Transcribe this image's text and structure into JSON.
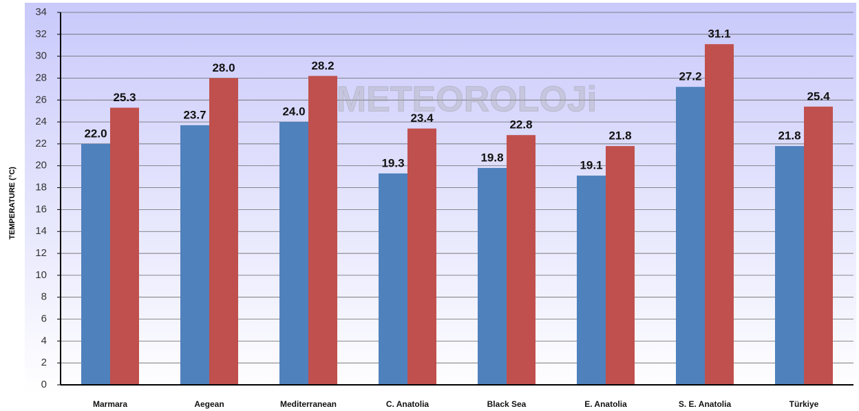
{
  "chart_data": {
    "type": "bar",
    "ylabel": "TEMPERATURE (°C)",
    "watermark": "METEOROLOJi",
    "categories": [
      "Marmara",
      "Aegean",
      "Mediterranean",
      "C. Anatolia",
      "Black Sea",
      "E. Anatolia",
      "S. E. Anatolia",
      "Türkiye"
    ],
    "series": [
      {
        "color": "#4f81bd",
        "values": [
          22.0,
          23.7,
          24.0,
          19.3,
          19.8,
          19.1,
          27.2,
          21.8
        ],
        "value_labels": [
          "22.0",
          "23.7",
          "24.0",
          "19.3",
          "19.8",
          "19.1",
          "27.2",
          "21.8"
        ]
      },
      {
        "color": "#c0504d",
        "values": [
          25.3,
          28.0,
          28.2,
          23.4,
          22.8,
          21.8,
          31.1,
          25.4
        ],
        "value_labels": [
          "25.3",
          "28.0",
          "28.2",
          "23.4",
          "22.8",
          "21.8",
          "31.1",
          "25.4"
        ]
      }
    ],
    "ylim": [
      0,
      34
    ],
    "yticks": [
      0,
      2,
      4,
      6,
      8,
      10,
      12,
      14,
      16,
      18,
      20,
      22,
      24,
      26,
      28,
      30,
      32,
      34
    ],
    "grid": true
  }
}
